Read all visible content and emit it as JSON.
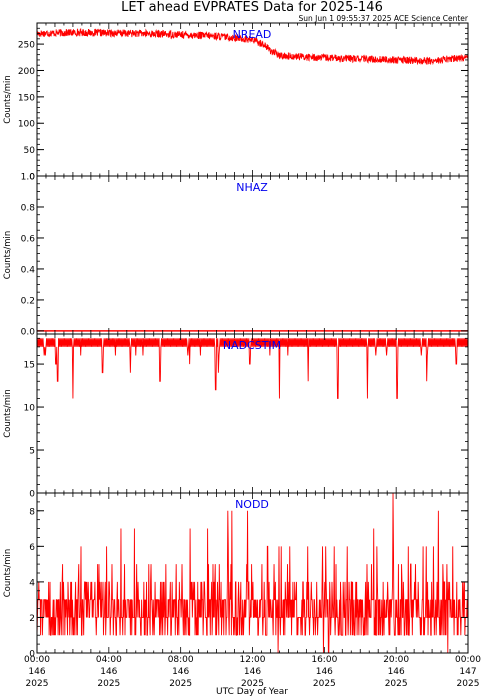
{
  "title": "LET ahead EVPRATES Data for 2025-146",
  "timestamp": "Sun Jun  1 09:55:37 2025 ACE Science Center",
  "xlabel": "UTC Day of Year",
  "colors": {
    "series": "#ff0000",
    "panel_label": "#0000ee",
    "axes": "#000000"
  },
  "x_ticks": [
    {
      "time": "00:00",
      "doy": "146",
      "year": "2025",
      "hour": 0
    },
    {
      "time": "04:00",
      "doy": "146",
      "year": "2025",
      "hour": 4
    },
    {
      "time": "08:00",
      "doy": "146",
      "year": "2025",
      "hour": 8
    },
    {
      "time": "12:00",
      "doy": "146",
      "year": "2025",
      "hour": 12
    },
    {
      "time": "16:00",
      "doy": "146",
      "year": "2025",
      "hour": 16
    },
    {
      "time": "20:00",
      "doy": "146",
      "year": "2025",
      "hour": 20
    },
    {
      "time": "00:00",
      "doy": "147",
      "year": "2025",
      "hour": 24
    }
  ],
  "chart_data": [
    {
      "type": "line",
      "label": "NREAD",
      "ylabel": "Counts/min",
      "xlim_hours": [
        0,
        24
      ],
      "ylim": [
        0,
        290
      ],
      "yticks": [
        0,
        50,
        100,
        150,
        200,
        250
      ],
      "ytick_labels": [
        "0",
        "50",
        "100",
        "150",
        "200",
        "250"
      ],
      "profile_hours": [
        0,
        2,
        4,
        6,
        8,
        10,
        11,
        12,
        12.6,
        13,
        13.5,
        16,
        20,
        22,
        23,
        24
      ],
      "profile_values": [
        270,
        272,
        271,
        270,
        268,
        265,
        262,
        258,
        250,
        238,
        228,
        224,
        220,
        218,
        222,
        225
      ],
      "noise": 7
    },
    {
      "type": "line",
      "label": "NHAZ",
      "ylabel": "Counts/min",
      "xlim_hours": [
        0,
        24
      ],
      "ylim": [
        -0.02,
        1.0
      ],
      "yticks": [
        0.0,
        0.2,
        0.4,
        0.6,
        0.8,
        1.0
      ],
      "ytick_labels": [
        "0.0",
        "0.2",
        "0.4",
        "0.6",
        "0.8",
        "1.0"
      ],
      "profile_hours": [
        0,
        24
      ],
      "profile_values": [
        0,
        0
      ],
      "noise": 0
    },
    {
      "type": "line",
      "label": "NADCSTIM",
      "ylabel": "Counts/min",
      "xlim_hours": [
        0,
        24
      ],
      "ylim": [
        0,
        18.5
      ],
      "yticks": [
        0,
        5,
        10,
        15
      ],
      "ytick_labels": [
        "0",
        "5",
        "10",
        "15"
      ],
      "baseline_low": 17,
      "baseline_high": 18,
      "dip_hours": [
        0.4,
        1.05,
        1.15,
        2.0,
        3.65,
        5.2,
        6.85,
        8.5,
        9.95,
        10.1,
        11.85,
        13.5,
        15.1,
        16.75,
        18.4,
        20.05,
        21.7,
        23.35
      ],
      "dip_values": [
        16,
        15,
        13,
        11,
        14,
        14,
        13,
        15,
        12,
        14,
        15,
        11,
        13,
        11,
        11,
        11,
        13,
        15
      ]
    },
    {
      "type": "line",
      "label": "NODD",
      "ylabel": "Counts/min",
      "xlim_hours": [
        0,
        24
      ],
      "ylim": [
        0,
        9
      ],
      "yticks": [
        0,
        2,
        4,
        6,
        8
      ],
      "ytick_labels": [
        "0",
        "2",
        "4",
        "6",
        "8"
      ],
      "typical_range": [
        1,
        5
      ],
      "peak": 9
    }
  ]
}
